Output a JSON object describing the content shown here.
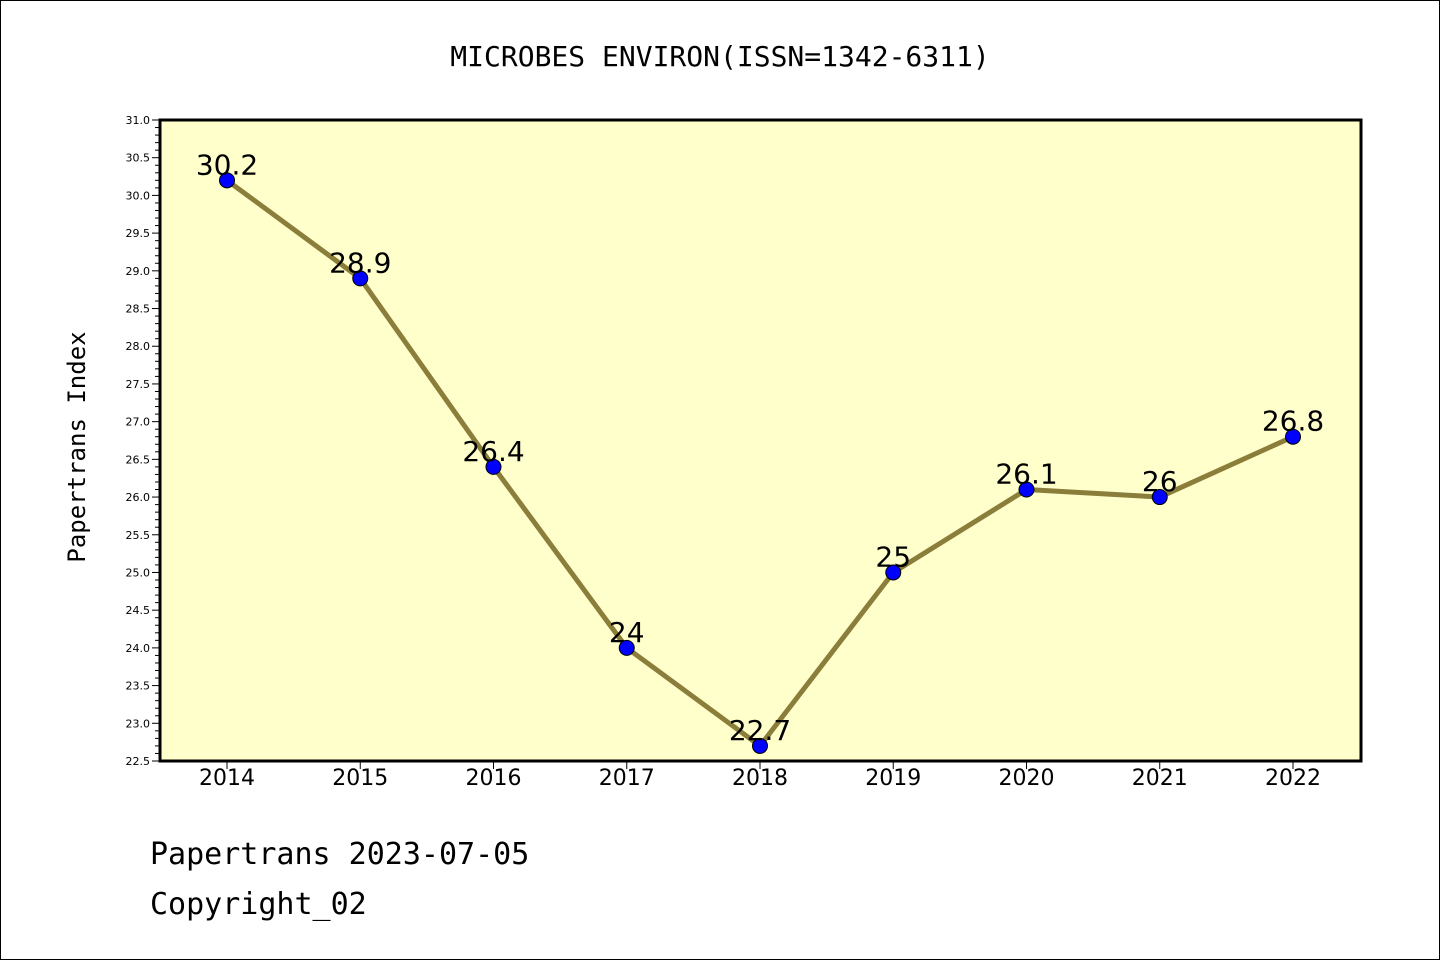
{
  "chart_data": {
    "type": "line",
    "title": "MICROBES ENVIRON(ISSN=1342-6311)",
    "xlabel": "",
    "ylabel": "Papertrans Index",
    "categories": [
      "2014",
      "2015",
      "2016",
      "2017",
      "2018",
      "2019",
      "2020",
      "2021",
      "2022"
    ],
    "values": [
      30.2,
      28.9,
      26.4,
      24.0,
      22.7,
      25.0,
      26.1,
      26.0,
      26.8
    ],
    "data_labels": [
      "30.2",
      "28.9",
      "26.4",
      "24",
      "22.7",
      "25",
      "26.1",
      "26",
      "26.8"
    ],
    "ylim": [
      22.5,
      31.0
    ],
    "yticks": [
      "22.5",
      "23.0",
      "23.5",
      "24.0",
      "24.5",
      "25.0",
      "25.5",
      "26.0",
      "26.5",
      "27.0",
      "27.5",
      "28.0",
      "28.5",
      "29.0",
      "29.5",
      "30.0",
      "30.5",
      "31.0"
    ],
    "grid": false,
    "legend": "none",
    "colors": {
      "line": "#8b7d3a",
      "marker": "#0000ff",
      "plot_background": "#ffffcc"
    }
  },
  "footer": {
    "source": "Papertrans 2023-07-05",
    "copyright": "Copyright_02"
  }
}
